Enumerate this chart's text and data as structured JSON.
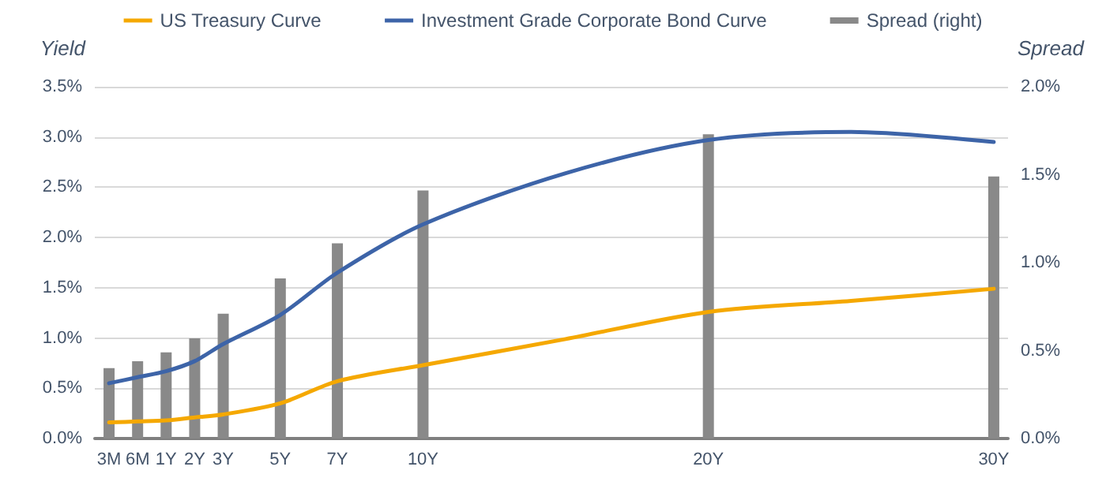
{
  "chart_data": {
    "type": "line",
    "categories": [
      "3M",
      "6M",
      "1Y",
      "2Y",
      "3Y",
      null,
      "5Y",
      null,
      "7Y",
      null,
      null,
      "10Y",
      null,
      null,
      null,
      null,
      null,
      null,
      null,
      null,
      null,
      "20Y",
      null,
      null,
      null,
      null,
      null,
      null,
      null,
      null,
      null,
      "30Y"
    ],
    "series": [
      {
        "name": "US Treasury Curve",
        "color": "#f5a800",
        "values": [
          0.16,
          0.17,
          0.18,
          0.21,
          0.24,
          null,
          0.35,
          null,
          0.57,
          null,
          null,
          0.73,
          null,
          null,
          null,
          null,
          0.99,
          null,
          null,
          null,
          null,
          1.26,
          null,
          null,
          null,
          null,
          1.37,
          null,
          null,
          null,
          null,
          1.49
        ]
      },
      {
        "name": "Investment Grade Corporate Bond Curve",
        "color": "#3d64a8",
        "values": [
          0.55,
          0.61,
          0.67,
          0.77,
          0.94,
          null,
          1.23,
          null,
          1.65,
          null,
          null,
          2.13,
          null,
          null,
          null,
          null,
          2.64,
          null,
          null,
          null,
          null,
          2.97,
          null,
          null,
          null,
          null,
          3.05,
          null,
          null,
          null,
          null,
          2.95
        ]
      },
      {
        "name": "Spread (right)",
        "type": "bar",
        "axis": "y2",
        "color": "#898989",
        "values": [
          0.4,
          0.44,
          0.49,
          0.57,
          0.71,
          null,
          0.91,
          null,
          1.11,
          null,
          null,
          1.41,
          null,
          null,
          null,
          null,
          null,
          null,
          null,
          null,
          null,
          1.73,
          null,
          null,
          null,
          null,
          null,
          null,
          null,
          null,
          null,
          1.49
        ]
      }
    ],
    "ylabel": "Yield",
    "y2label": "Spread",
    "ylim": [
      0,
      3.5
    ],
    "yticks": [
      {
        "value": 0,
        "label": "0.0%"
      },
      {
        "value": 0.5,
        "label": "0.5%"
      },
      {
        "value": 1,
        "label": "1.0%"
      },
      {
        "value": 1.5,
        "label": "1.5%"
      },
      {
        "value": 2,
        "label": "2.0%"
      },
      {
        "value": 2.5,
        "label": "2.5%"
      },
      {
        "value": 3,
        "label": "3.0%"
      },
      {
        "value": 3.5,
        "label": "3.5%"
      }
    ],
    "y2lim": [
      0,
      2
    ],
    "y2ticks": [
      {
        "value": 0,
        "label": "0.0%"
      },
      {
        "value": 0.5,
        "label": "0.5%"
      },
      {
        "value": 1,
        "label": "1.0%"
      },
      {
        "value": 1.5,
        "label": "1.5%"
      },
      {
        "value": 2,
        "label": "2.0%"
      }
    ],
    "grid": "y",
    "legend": "top",
    "marker": "none"
  }
}
